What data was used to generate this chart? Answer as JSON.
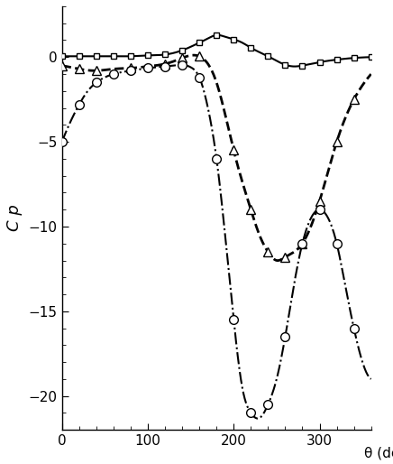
{
  "title": "",
  "xlabel": "θ (deg",
  "ylabel": "C p",
  "xlim": [
    0,
    360
  ],
  "ylim": [
    -22,
    3
  ],
  "yticks": [
    0,
    -5,
    -10,
    -15,
    -20
  ],
  "xticks": [
    0,
    100,
    200,
    300
  ],
  "background_color": "#ffffff",
  "curve1_x": [
    0,
    20,
    40,
    60,
    80,
    100,
    120,
    140,
    160,
    170,
    180,
    190,
    200,
    210,
    220,
    240,
    260,
    270,
    280,
    300,
    320,
    340,
    360
  ],
  "curve1_y": [
    0.05,
    0.05,
    0.05,
    0.05,
    0.05,
    0.1,
    0.15,
    0.4,
    0.85,
    1.1,
    1.3,
    1.2,
    1.05,
    0.85,
    0.55,
    0.05,
    -0.45,
    -0.55,
    -0.5,
    -0.3,
    -0.15,
    -0.05,
    0.0
  ],
  "curve1_marker_x": [
    0,
    20,
    40,
    60,
    80,
    100,
    120,
    140,
    160,
    180,
    200,
    220,
    240,
    260,
    280,
    300,
    320,
    340,
    360
  ],
  "curve1_marker_y": [
    0.05,
    0.05,
    0.05,
    0.05,
    0.05,
    0.1,
    0.15,
    0.4,
    0.85,
    1.3,
    1.05,
    0.55,
    0.05,
    -0.45,
    -0.5,
    -0.3,
    -0.15,
    -0.05,
    0.0
  ],
  "curve1_style": "-",
  "curve1_marker": "s",
  "curve1_color": "#000000",
  "curve2_x": [
    0,
    20,
    40,
    60,
    80,
    100,
    120,
    130,
    140,
    150,
    160,
    170,
    180,
    200,
    220,
    230,
    240,
    250,
    260,
    280,
    300,
    320,
    340,
    360
  ],
  "curve2_y": [
    -0.5,
    -0.7,
    -0.8,
    -0.7,
    -0.65,
    -0.55,
    -0.4,
    -0.25,
    -0.05,
    0.1,
    0.05,
    -0.4,
    -1.5,
    -5.5,
    -9.0,
    -10.5,
    -11.5,
    -12.0,
    -11.8,
    -11.0,
    -8.5,
    -5.0,
    -2.5,
    -1.0
  ],
  "curve2_marker_x": [
    0,
    20,
    40,
    80,
    120,
    140,
    160,
    200,
    220,
    240,
    260,
    280,
    300,
    320,
    340
  ],
  "curve2_marker_y": [
    -0.5,
    -0.7,
    -0.8,
    -0.65,
    -0.4,
    -0.05,
    0.05,
    -5.5,
    -9.0,
    -11.5,
    -11.8,
    -11.0,
    -8.5,
    -5.0,
    -2.5
  ],
  "curve2_style": "--",
  "curve2_marker": "^",
  "curve2_color": "#000000",
  "curve3_x": [
    0,
    10,
    20,
    30,
    40,
    60,
    80,
    100,
    110,
    120,
    130,
    140,
    150,
    160,
    170,
    180,
    190,
    200,
    210,
    220,
    230,
    240,
    250,
    260,
    270,
    280,
    290,
    300,
    310,
    320,
    330,
    340,
    350,
    360
  ],
  "curve3_y": [
    -5.0,
    -3.8,
    -2.8,
    -2.0,
    -1.5,
    -1.0,
    -0.8,
    -0.65,
    -0.6,
    -0.55,
    -0.5,
    -0.45,
    -0.6,
    -1.2,
    -3.0,
    -6.0,
    -10.5,
    -15.5,
    -19.5,
    -21.0,
    -21.3,
    -20.5,
    -19.0,
    -16.5,
    -13.5,
    -11.0,
    -9.5,
    -9.0,
    -9.5,
    -11.0,
    -13.5,
    -16.0,
    -18.0,
    -19.0
  ],
  "curve3_marker_x": [
    0,
    20,
    40,
    60,
    80,
    100,
    120,
    140,
    160,
    180,
    200,
    220,
    240,
    260,
    280,
    300,
    320,
    340
  ],
  "curve3_marker_y": [
    -5.0,
    -2.8,
    -1.5,
    -1.0,
    -0.8,
    -0.65,
    -0.55,
    -0.45,
    -1.2,
    -6.0,
    -15.5,
    -21.0,
    -20.5,
    -16.5,
    -11.0,
    -9.0,
    -11.0,
    -16.0
  ],
  "curve3_style": "-.",
  "curve3_marker": "o",
  "curve3_color": "#000000"
}
